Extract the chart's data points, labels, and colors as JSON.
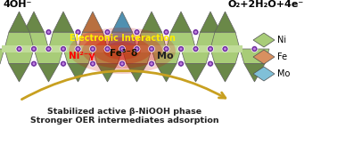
{
  "left_label": "4OH⁻",
  "right_label": "O₂+2H₂O+4e⁻",
  "arrow_text1": "Stabilized active β-NiOOH phase",
  "arrow_text2": "Stronger OER intermediates adsorption",
  "ni_label": "Ni²⁻γ",
  "fe_label": "Fe³⁻δ",
  "mo_label": "Mo",
  "interaction_label": "Electronic Interaction",
  "ni_light": "#a8cc78",
  "ni_mid": "#8ab060",
  "ni_dark": "#6a8848",
  "fe_light": "#d89060",
  "fe_dark": "#b87040",
  "mo_light": "#80c0d8",
  "mo_dark": "#5090b0",
  "atom_outer": "#7030a0",
  "atom_inner": "#c080e0",
  "bg_color": "#ffffff",
  "arrow_color": "#c8a020",
  "glow1": "#cc1100",
  "glow2": "#dd3311",
  "glow3": "#ee6633",
  "glow4": "#f09060",
  "legend_ni": "#a8cc78",
  "legend_fe": "#d89060",
  "legend_mo": "#80c0d8",
  "legend_ec": "#505050",
  "text_color": "#222222"
}
